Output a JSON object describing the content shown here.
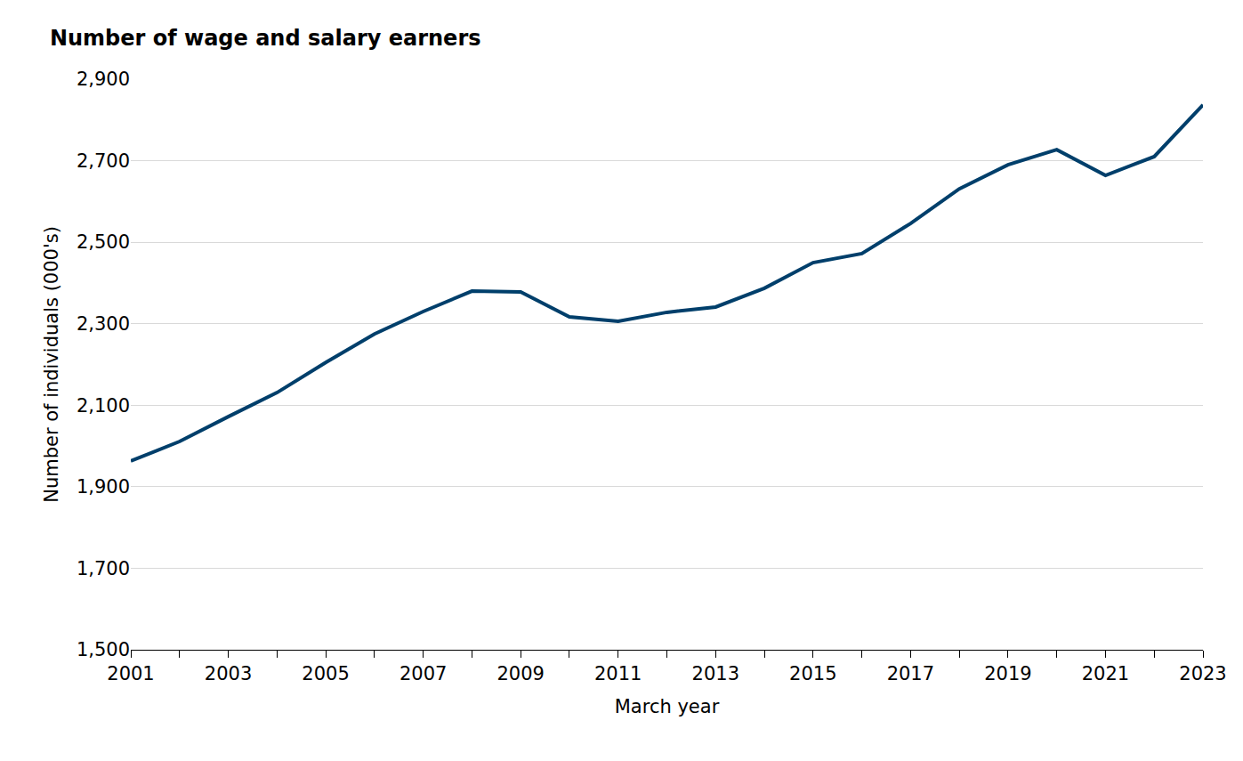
{
  "chart_data": {
    "type": "line",
    "title": "Number of wage and salary earners",
    "x_label": "March year",
    "y_label": "Number of individuals (000's)",
    "x": [
      2001,
      2002,
      2003,
      2004,
      2005,
      2006,
      2007,
      2008,
      2009,
      2010,
      2011,
      2012,
      2013,
      2014,
      2015,
      2016,
      2017,
      2018,
      2019,
      2020,
      2021,
      2022,
      2023
    ],
    "values": [
      1963,
      2011,
      2072,
      2131,
      2205,
      2275,
      2330,
      2380,
      2378,
      2317,
      2306,
      2328,
      2341,
      2387,
      2450,
      2472,
      2546,
      2631,
      2690,
      2727,
      2664,
      2710,
      2837
    ],
    "color": "#003f6b",
    "xlim": [
      2001,
      2023
    ],
    "xticks": [
      2001,
      2003,
      2005,
      2007,
      2009,
      2011,
      2013,
      2015,
      2017,
      2019,
      2021,
      2023
    ],
    "ylim": [
      1500,
      2900
    ],
    "yticks": [
      {
        "value": 1500,
        "label": "1,500"
      },
      {
        "value": 1700,
        "label": "1,700"
      },
      {
        "value": 1900,
        "label": "1,900"
      },
      {
        "value": 2100,
        "label": "2,100"
      },
      {
        "value": 2300,
        "label": "2,300"
      },
      {
        "value": 2500,
        "label": "2,500"
      },
      {
        "value": 2700,
        "label": "2,700"
      },
      {
        "value": 2900,
        "label": "2,900"
      }
    ],
    "grid": true
  }
}
